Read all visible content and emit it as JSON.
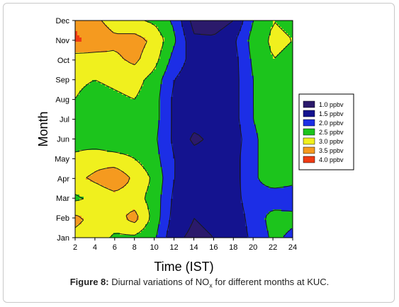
{
  "chart_data": {
    "type": "heatmap",
    "title": "",
    "xlabel": "Time (IST)",
    "ylabel": "Month",
    "x_ticks": [
      "2",
      "4",
      "6",
      "8",
      "10",
      "12",
      "14",
      "16",
      "18",
      "20",
      "22",
      "24"
    ],
    "y_ticks": [
      "Jan",
      "Feb",
      "Mar",
      "Apr",
      "May",
      "Jun",
      "Jul",
      "Aug",
      "Sep",
      "Oct",
      "Nov",
      "Dec"
    ],
    "x": [
      2,
      4,
      6,
      8,
      10,
      12,
      14,
      16,
      18,
      20,
      22,
      24
    ],
    "xlim": [
      2,
      24
    ],
    "legend_position": "right",
    "legend": [
      {
        "label": "1.0 ppbv",
        "color": "#2b1a6b"
      },
      {
        "label": "1.5 ppbv",
        "color": "#14138f"
      },
      {
        "label": "2.0 ppbv",
        "color": "#1c2ee6"
      },
      {
        "label": "2.5 ppbv",
        "color": "#1cc41c"
      },
      {
        "label": "3.0 ppbv",
        "color": "#f0f01e"
      },
      {
        "label": "3.5 ppbv",
        "color": "#f59a1f"
      },
      {
        "label": "4.0 ppbv",
        "color": "#f03c14"
      }
    ],
    "grid": [
      [
        3.4,
        3.3,
        2.9,
        2.9,
        2.6,
        1.6,
        1.4,
        1.5,
        1.7,
        2.1,
        2.6,
        2.4
      ],
      [
        3.6,
        3.4,
        3.3,
        3.7,
        2.8,
        1.8,
        1.5,
        1.6,
        1.7,
        2.2,
        2.7,
        2.6
      ],
      [
        2.9,
        3.1,
        3.3,
        3.2,
        2.8,
        1.9,
        1.6,
        1.6,
        1.8,
        2.3,
        2.2,
        2.3
      ],
      [
        3.4,
        3.6,
        3.9,
        3.4,
        2.9,
        2.0,
        1.6,
        1.6,
        1.8,
        2.4,
        2.8,
        2.6
      ],
      [
        3.1,
        3.3,
        3.2,
        3.0,
        2.7,
        2.0,
        1.7,
        1.7,
        1.8,
        2.4,
        2.8,
        2.7
      ],
      [
        2.8,
        2.7,
        2.6,
        2.7,
        2.6,
        1.9,
        1.4,
        1.6,
        1.7,
        2.4,
        2.8,
        2.7
      ],
      [
        2.7,
        2.6,
        2.7,
        2.8,
        2.7,
        1.9,
        1.7,
        1.7,
        1.8,
        2.5,
        2.8,
        2.7
      ],
      [
        3.0,
        2.8,
        2.9,
        3.0,
        2.7,
        1.9,
        1.7,
        1.7,
        1.8,
        2.5,
        2.9,
        2.8
      ],
      [
        3.1,
        3.0,
        3.1,
        3.2,
        2.8,
        2.0,
        1.7,
        1.7,
        1.8,
        2.5,
        2.9,
        2.8
      ],
      [
        3.2,
        3.3,
        3.4,
        3.6,
        3.2,
        2.3,
        1.8,
        1.7,
        1.8,
        2.6,
        3.0,
        2.9
      ],
      [
        4.1,
        3.8,
        3.6,
        3.7,
        3.4,
        2.6,
        1.6,
        1.6,
        1.9,
        2.7,
        3.1,
        3.0
      ],
      [
        3.9,
        3.6,
        3.3,
        3.1,
        2.9,
        2.4,
        1.3,
        1.2,
        1.5,
        2.5,
        3.0,
        2.9
      ]
    ]
  },
  "caption": {
    "label": "Figure 8:",
    "text_before": "Diurnal variations of NO",
    "subscript": "x",
    "text_after": "for different months at KUC."
  }
}
